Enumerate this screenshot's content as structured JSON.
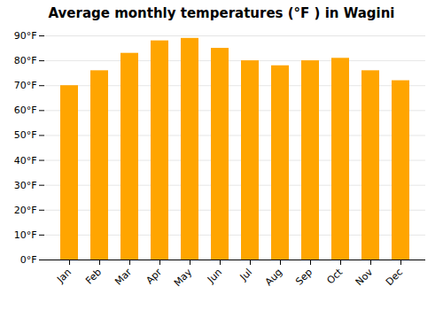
{
  "chart_data": {
    "type": "bar",
    "title": "Average monthly temperatures (°F ) in Wagini",
    "categories": [
      "Jan",
      "Feb",
      "Mar",
      "Apr",
      "May",
      "Jun",
      "Jul",
      "Aug",
      "Sep",
      "Oct",
      "Nov",
      "Dec"
    ],
    "values": [
      70,
      76,
      83,
      88,
      89,
      85,
      80,
      78,
      80,
      81,
      76,
      72
    ],
    "color": "#FFA500",
    "ylim": [
      0,
      90
    ],
    "yticks": [
      {
        "value": 0,
        "label": "0°F"
      },
      {
        "value": 10,
        "label": "10°F"
      },
      {
        "value": 20,
        "label": "20°F"
      },
      {
        "value": 30,
        "label": "30°F"
      },
      {
        "value": 40,
        "label": "40°F"
      },
      {
        "value": 50,
        "label": "50°F"
      },
      {
        "value": 60,
        "label": "60°F"
      },
      {
        "value": 70,
        "label": "70°F"
      },
      {
        "value": 80,
        "label": "80°F"
      },
      {
        "value": 90,
        "label": "90°F"
      }
    ],
    "grid": true
  }
}
